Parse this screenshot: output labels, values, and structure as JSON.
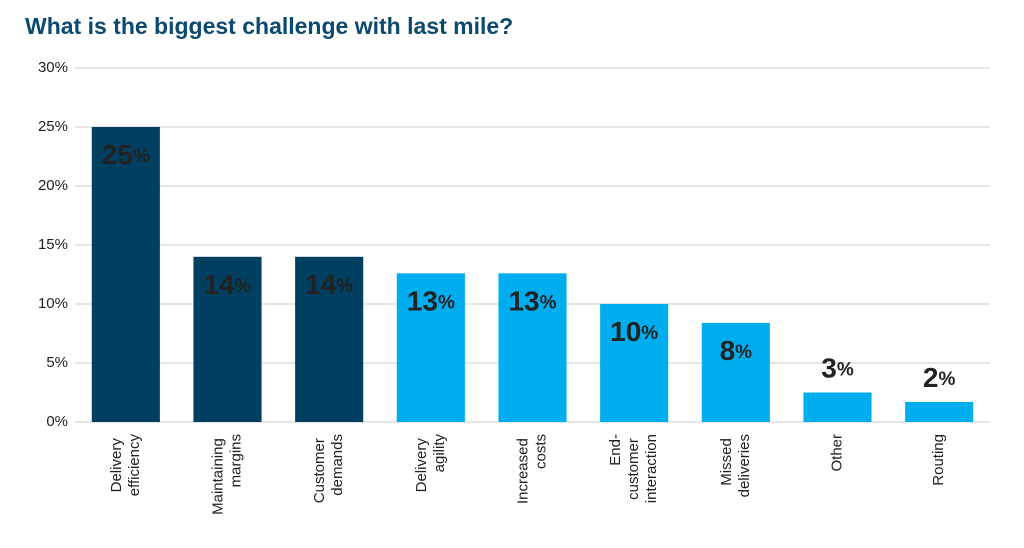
{
  "chart_data": {
    "type": "bar",
    "title": "What is the biggest challenge with last mile?",
    "categories": [
      "Delivery efficiency",
      "Maintaining margins",
      "Customer demands",
      "Delivery agility",
      "Increased costs",
      "End-customer interaction",
      "Missed deliveries",
      "Other",
      "Routing"
    ],
    "values": [
      25,
      14,
      14,
      12.6,
      12.6,
      10,
      8.4,
      2.5,
      1.7
    ],
    "value_labels": [
      "25%",
      "14%",
      "14%",
      "13%",
      "13%",
      "10%",
      "8%",
      "3%",
      "2%"
    ],
    "colors": [
      "#003f5f",
      "#003f5f",
      "#003f5f",
      "#00aeef",
      "#00aeef",
      "#00aeef",
      "#00aeef",
      "#00aeef",
      "#00aeef"
    ],
    "ylim": [
      0,
      30
    ],
    "yticks": [
      {
        "value": 0,
        "label": "0%"
      },
      {
        "value": 5,
        "label": "5%"
      },
      {
        "value": 10,
        "label": "10%"
      },
      {
        "value": 15,
        "label": "15%"
      },
      {
        "value": 20,
        "label": "20%"
      },
      {
        "value": 25,
        "label": "25%"
      },
      {
        "value": 30,
        "label": "30%"
      }
    ],
    "grid": true
  }
}
